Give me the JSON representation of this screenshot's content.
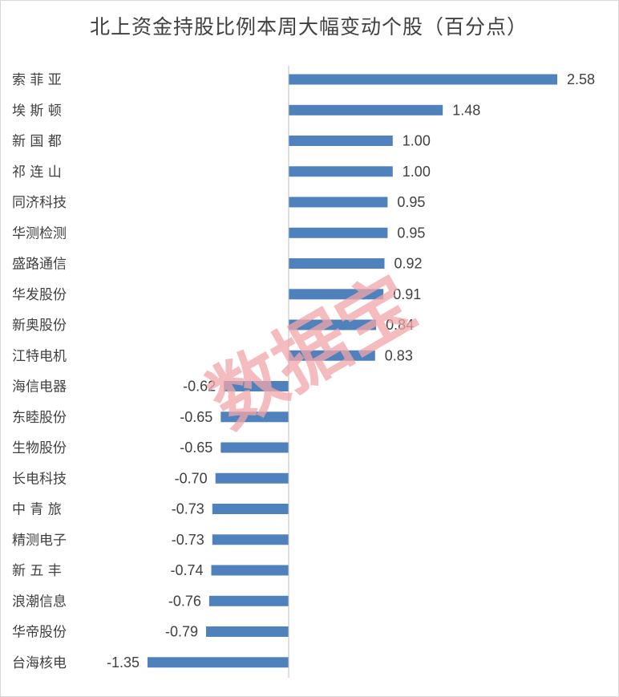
{
  "chart_data": {
    "type": "bar",
    "orientation": "horizontal",
    "title": "北上资金持股比例本周大幅变动个股（百分点）",
    "categories": [
      "索菲亚",
      "埃斯顿",
      "新国都",
      "祁连山",
      "同济科技",
      "华测检测",
      "盛路通信",
      "华发股份",
      "新奥股份",
      "江特电机",
      "海信电器",
      "东睦股份",
      "生物股份",
      "长电科技",
      "中青旅",
      "精测电子",
      "新五丰",
      "浪潮信息",
      "华帝股份",
      "台海核电"
    ],
    "category_display": [
      "索 菲 亚",
      "埃 斯 顿",
      "新 国 都",
      "祁 连 山",
      "同济科技",
      "华测检测",
      "盛路通信",
      "华发股份",
      "新奥股份",
      "江特电机",
      "海信电器",
      "东睦股份",
      "生物股份",
      "长电科技",
      "中 青 旅",
      "精测电子",
      "新 五 丰",
      "浪潮信息",
      "华帝股份",
      "台海核电"
    ],
    "values": [
      2.58,
      1.48,
      1.0,
      1.0,
      0.95,
      0.95,
      0.92,
      0.91,
      0.84,
      0.83,
      -0.62,
      -0.65,
      -0.65,
      -0.7,
      -0.73,
      -0.73,
      -0.74,
      -0.76,
      -0.79,
      -1.35
    ],
    "value_labels": [
      "2.58",
      "1.48",
      "1.00",
      "1.00",
      "0.95",
      "0.95",
      "0.92",
      "0.91",
      "0.84",
      "0.83",
      "-0.62",
      "-0.65",
      "-0.65",
      "-0.70",
      "-0.73",
      "-0.73",
      "-0.74",
      "-0.76",
      "-0.79",
      "-1.35"
    ],
    "xlim": [
      -1.35,
      2.58
    ],
    "bar_color": "#4f81bd",
    "grid": false,
    "legend": "none",
    "watermark": "数据宝"
  }
}
